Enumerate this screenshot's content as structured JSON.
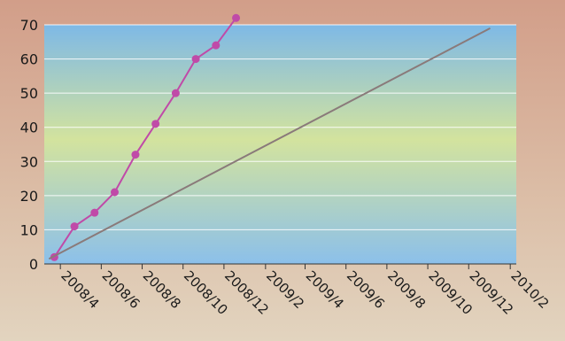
{
  "chart_data": {
    "type": "line",
    "title": "",
    "xlabel": "",
    "ylabel": "",
    "ylim": [
      0,
      70
    ],
    "xlim": [
      "2008-03-08",
      "2010-02-10"
    ],
    "yticks": [
      0,
      10,
      20,
      30,
      40,
      50,
      60,
      70
    ],
    "xticks": [
      "2008/4",
      "2008/6",
      "2008/8",
      "2008/10",
      "2008/12",
      "2009/2",
      "2009/4",
      "2009/6",
      "2009/8",
      "2009/10",
      "2009/12",
      "2010/2"
    ],
    "grid": "horizontal",
    "legend": "none",
    "series": [
      {
        "color": "#c04aa8",
        "markers": true,
        "x": [
          "2008-03-23",
          "2008-04-22",
          "2008-05-22",
          "2008-06-21",
          "2008-07-22",
          "2008-08-21",
          "2008-09-20",
          "2008-10-20",
          "2008-11-19",
          "2008-12-19"
        ],
        "y": [
          2,
          11,
          15,
          21,
          32,
          41,
          50,
          60,
          64,
          72
        ]
      },
      {
        "color": "#8a7a7a",
        "markers": false,
        "x": [
          "2008-03-15",
          "2010-01-02"
        ],
        "y": [
          1.5,
          69
        ]
      }
    ],
    "colors": {
      "plot_top": "#7eb9e6",
      "plot_mid": "#d3e39e",
      "plot_bottom": "#8cc0ea",
      "gridline": "#ffffff",
      "axis": "#333333"
    }
  }
}
